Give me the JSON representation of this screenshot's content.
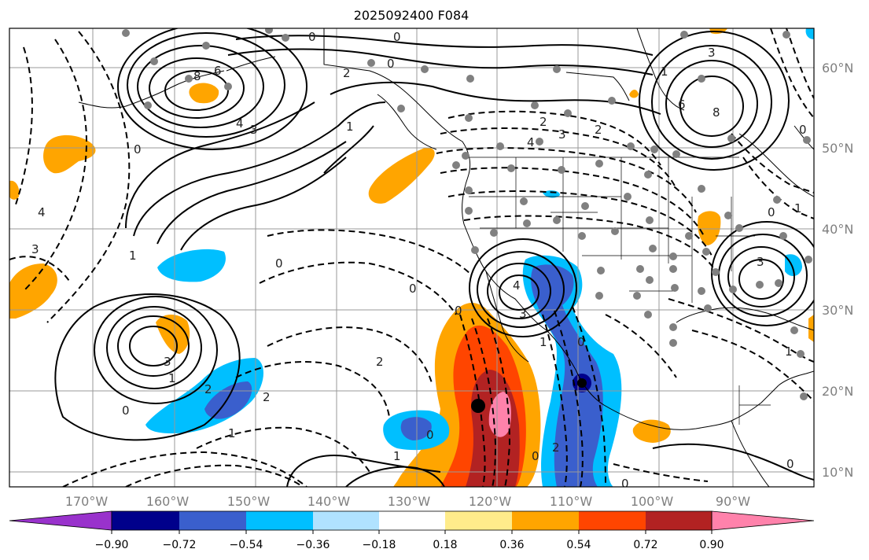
{
  "title": "2025092400 F084",
  "map": {
    "lat_labels": [
      "60°N",
      "50°N",
      "40°N",
      "30°N",
      "20°N",
      "10°N"
    ],
    "lon_labels": [
      "170°W",
      "160°W",
      "150°W",
      "140°W",
      "130°W",
      "120°W",
      "110°W",
      "100°W",
      "90°W"
    ],
    "contour_labels": [
      "0",
      "0",
      "6",
      "8",
      "4",
      "3",
      "2",
      "0",
      "1",
      "4",
      "3",
      "2",
      "6",
      "8",
      "1",
      "3",
      "2",
      "0",
      "4",
      "3",
      "1",
      "0",
      "3",
      "4",
      "0",
      "1",
      "2",
      "1",
      "0",
      "3",
      "2",
      "0",
      "1",
      "0",
      "2",
      "0",
      "1",
      "2",
      "0",
      "0",
      "3",
      "1",
      "0",
      "1",
      "0",
      "0"
    ]
  },
  "colorbar": {
    "tick_labels": [
      "−0.90",
      "−0.72",
      "−0.54",
      "−0.36",
      "−0.18",
      "0.18",
      "0.36",
      "0.54",
      "0.72",
      "0.90"
    ],
    "colors": [
      "#9932cc",
      "#00008b",
      "#3a5fcd",
      "#00bfff",
      "#b0e2ff",
      "#ffffff",
      "#ffec8b",
      "#ffa500",
      "#ff4500",
      "#b22222",
      "#ff82ab"
    ]
  },
  "colors": {
    "accent_warm": "#ffa500",
    "accent_cool": "#00bfff",
    "grid": "#999999",
    "station": "#808080"
  }
}
